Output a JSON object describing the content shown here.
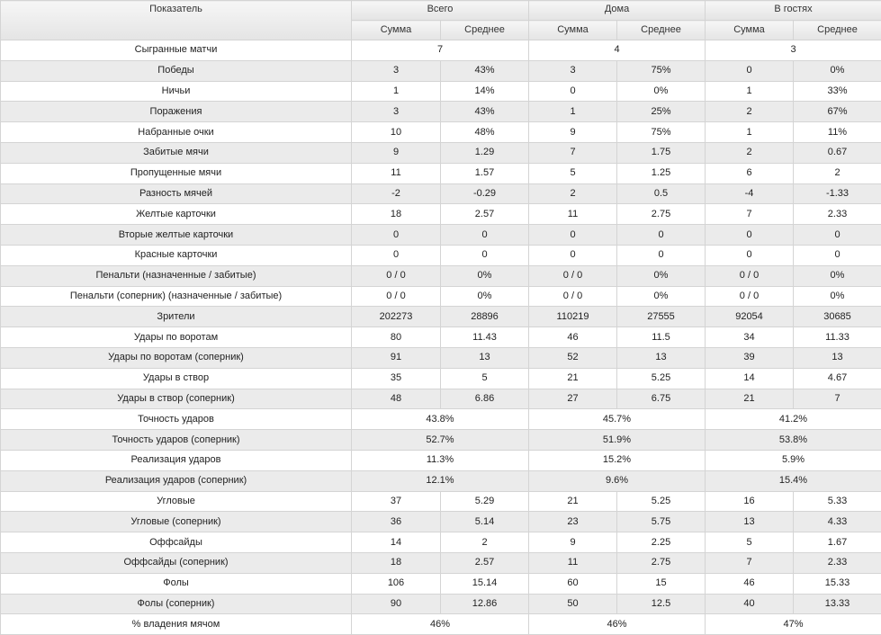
{
  "header": {
    "indicator": "Показатель",
    "groups": [
      "Всего",
      "Дома",
      "В гостях"
    ],
    "sub": [
      "Сумма",
      "Среднее"
    ]
  },
  "rows": [
    {
      "label": "Сыгранные матчи",
      "span": [
        "7",
        "4",
        "3"
      ]
    },
    {
      "label": "Победы",
      "values": [
        "3",
        "43%",
        "3",
        "75%",
        "0",
        "0%"
      ]
    },
    {
      "label": "Ничьи",
      "values": [
        "1",
        "14%",
        "0",
        "0%",
        "1",
        "33%"
      ]
    },
    {
      "label": "Поражения",
      "values": [
        "3",
        "43%",
        "1",
        "25%",
        "2",
        "67%"
      ]
    },
    {
      "label": "Набранные очки",
      "values": [
        "10",
        "48%",
        "9",
        "75%",
        "1",
        "11%"
      ]
    },
    {
      "label": "Забитые мячи",
      "values": [
        "9",
        "1.29",
        "7",
        "1.75",
        "2",
        "0.67"
      ]
    },
    {
      "label": "Пропущенные мячи",
      "values": [
        "11",
        "1.57",
        "5",
        "1.25",
        "6",
        "2"
      ]
    },
    {
      "label": "Разность мячей",
      "values": [
        "-2",
        "-0.29",
        "2",
        "0.5",
        "-4",
        "-1.33"
      ]
    },
    {
      "label": "Желтые карточки",
      "values": [
        "18",
        "2.57",
        "11",
        "2.75",
        "7",
        "2.33"
      ]
    },
    {
      "label": "Вторые желтые карточки",
      "values": [
        "0",
        "0",
        "0",
        "0",
        "0",
        "0"
      ]
    },
    {
      "label": "Красные карточки",
      "values": [
        "0",
        "0",
        "0",
        "0",
        "0",
        "0"
      ]
    },
    {
      "label": "Пенальти (назначенные / забитые)",
      "values": [
        "0 / 0",
        "0%",
        "0 / 0",
        "0%",
        "0 / 0",
        "0%"
      ]
    },
    {
      "label": "Пенальти (соперник) (назначенные / забитые)",
      "values": [
        "0 / 0",
        "0%",
        "0 / 0",
        "0%",
        "0 / 0",
        "0%"
      ]
    },
    {
      "label": "Зрители",
      "values": [
        "202273",
        "28896",
        "110219",
        "27555",
        "92054",
        "30685"
      ]
    },
    {
      "label": "Удары по воротам",
      "values": [
        "80",
        "11.43",
        "46",
        "11.5",
        "34",
        "11.33"
      ]
    },
    {
      "label": "Удары по воротам (соперник)",
      "values": [
        "91",
        "13",
        "52",
        "13",
        "39",
        "13"
      ]
    },
    {
      "label": "Удары в створ",
      "values": [
        "35",
        "5",
        "21",
        "5.25",
        "14",
        "4.67"
      ]
    },
    {
      "label": "Удары в створ (соперник)",
      "values": [
        "48",
        "6.86",
        "27",
        "6.75",
        "21",
        "7"
      ]
    },
    {
      "label": "Точность ударов",
      "span": [
        "43.8%",
        "45.7%",
        "41.2%"
      ]
    },
    {
      "label": "Точность ударов (соперник)",
      "span": [
        "52.7%",
        "51.9%",
        "53.8%"
      ]
    },
    {
      "label": "Реализация ударов",
      "span": [
        "11.3%",
        "15.2%",
        "5.9%"
      ]
    },
    {
      "label": "Реализация ударов (соперник)",
      "span": [
        "12.1%",
        "9.6%",
        "15.4%"
      ]
    },
    {
      "label": "Угловые",
      "values": [
        "37",
        "5.29",
        "21",
        "5.25",
        "16",
        "5.33"
      ]
    },
    {
      "label": "Угловые (соперник)",
      "values": [
        "36",
        "5.14",
        "23",
        "5.75",
        "13",
        "4.33"
      ]
    },
    {
      "label": "Оффсайды",
      "values": [
        "14",
        "2",
        "9",
        "2.25",
        "5",
        "1.67"
      ]
    },
    {
      "label": "Оффсайды (соперник)",
      "values": [
        "18",
        "2.57",
        "11",
        "2.75",
        "7",
        "2.33"
      ]
    },
    {
      "label": "Фолы",
      "values": [
        "106",
        "15.14",
        "60",
        "15",
        "46",
        "15.33"
      ]
    },
    {
      "label": "Фолы (соперник)",
      "values": [
        "90",
        "12.86",
        "50",
        "12.5",
        "40",
        "13.33"
      ]
    },
    {
      "label": "% владения мячом",
      "span": [
        "46%",
        "46%",
        "47%"
      ]
    }
  ]
}
